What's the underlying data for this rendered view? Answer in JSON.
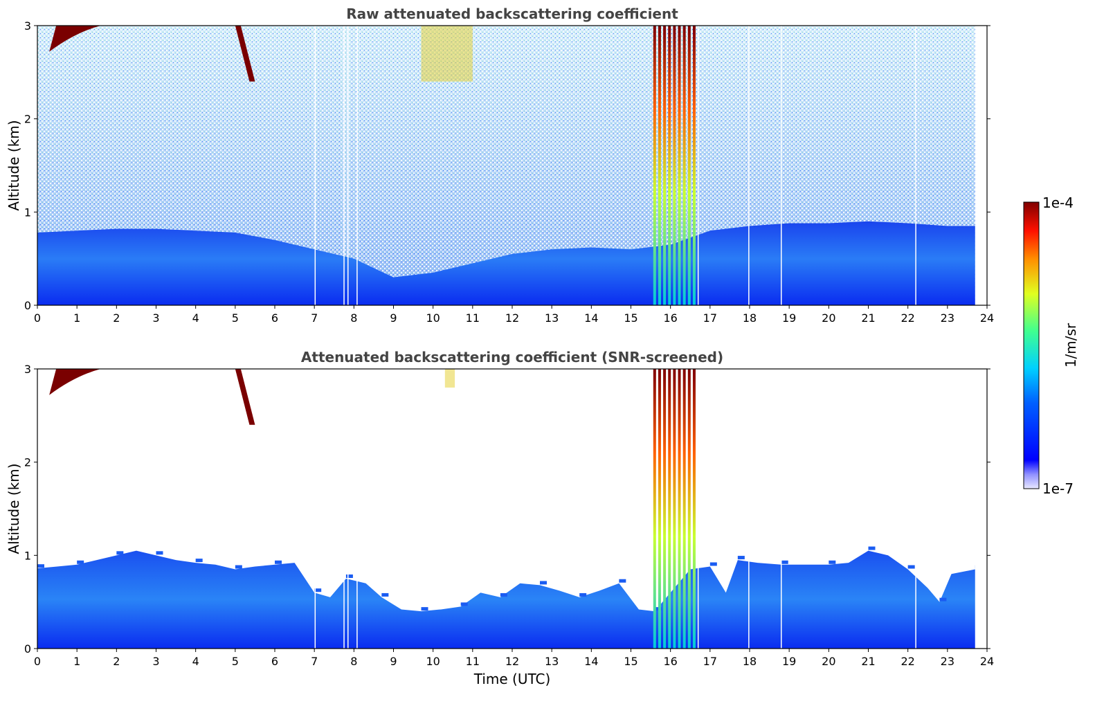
{
  "chart_data": [
    {
      "type": "heatmap",
      "title": "Raw attenuated backscattering coefficient",
      "xlabel": "",
      "ylabel": "Altitude (km)",
      "xlim": [
        0,
        24
      ],
      "ylim": [
        0,
        3
      ],
      "x_ticks": [
        "0",
        "1",
        "2",
        "3",
        "4",
        "5",
        "6",
        "7",
        "8",
        "9",
        "10",
        "11",
        "12",
        "13",
        "14",
        "15",
        "16",
        "17",
        "18",
        "19",
        "20",
        "21",
        "22",
        "23",
        "24"
      ],
      "y_ticks": [
        "0",
        "1",
        "2",
        "3"
      ],
      "data_end_time": 23.7,
      "gap_times": [
        7.02,
        7.75,
        7.85,
        8.08,
        16.7,
        17.98,
        18.8,
        22.2
      ],
      "boundary_layer_top_km": [
        [
          0,
          0.78
        ],
        [
          1,
          0.8
        ],
        [
          2,
          0.82
        ],
        [
          3,
          0.82
        ],
        [
          4,
          0.8
        ],
        [
          5,
          0.78
        ],
        [
          6,
          0.7
        ],
        [
          7,
          0.6
        ],
        [
          8,
          0.5
        ],
        [
          9,
          0.3
        ],
        [
          10,
          0.35
        ],
        [
          11,
          0.45
        ],
        [
          12,
          0.55
        ],
        [
          13,
          0.6
        ],
        [
          14,
          0.62
        ],
        [
          15,
          0.6
        ],
        [
          16,
          0.65
        ],
        [
          17,
          0.8
        ],
        [
          18,
          0.85
        ],
        [
          19,
          0.88
        ],
        [
          20,
          0.88
        ],
        [
          21,
          0.9
        ],
        [
          22,
          0.88
        ],
        [
          23,
          0.85
        ],
        [
          23.7,
          0.85
        ]
      ],
      "clouds": [
        {
          "t_start": 0.3,
          "t_end": 1.6,
          "alt_bottom_km": 2.72,
          "alt_top_km": 3.0
        },
        {
          "t_start": 5.0,
          "t_end": 5.5,
          "alt_bottom_km": 2.4,
          "alt_top_km": 3.0
        },
        {
          "t_start": 15.6,
          "t_end": 16.6,
          "alt_bottom_km": 0.0,
          "alt_top_km": 3.0
        }
      ],
      "aerosol_plume": {
        "t_start": 9.7,
        "t_end": 11.0,
        "alt_bottom_km": 2.4,
        "alt_top_km": 3.0
      }
    },
    {
      "type": "heatmap",
      "title": "Attenuated backscattering coefficient (SNR-screened)",
      "xlabel": "Time (UTC)",
      "ylabel": "Altitude (km)",
      "xlim": [
        0,
        24
      ],
      "ylim": [
        0,
        3
      ],
      "x_ticks": [
        "0",
        "1",
        "2",
        "3",
        "4",
        "5",
        "6",
        "7",
        "8",
        "9",
        "10",
        "11",
        "12",
        "13",
        "14",
        "15",
        "16",
        "17",
        "18",
        "19",
        "20",
        "21",
        "22",
        "23",
        "24"
      ],
      "y_ticks": [
        "0",
        "1",
        "2",
        "3"
      ],
      "data_end_time": 23.7,
      "gap_times": [
        7.02,
        7.75,
        7.85,
        8.08,
        16.7,
        17.98,
        18.8,
        22.2
      ],
      "screened_layer_top_km": [
        [
          0,
          0.86
        ],
        [
          0.5,
          0.88
        ],
        [
          1,
          0.9
        ],
        [
          1.5,
          0.95
        ],
        [
          2,
          1.0
        ],
        [
          2.5,
          1.05
        ],
        [
          3,
          1.0
        ],
        [
          3.5,
          0.95
        ],
        [
          4,
          0.92
        ],
        [
          4.5,
          0.9
        ],
        [
          5,
          0.85
        ],
        [
          5.5,
          0.88
        ],
        [
          6,
          0.9
        ],
        [
          6.5,
          0.92
        ],
        [
          7,
          0.6
        ],
        [
          7.4,
          0.55
        ],
        [
          7.8,
          0.75
        ],
        [
          8.3,
          0.7
        ],
        [
          8.7,
          0.55
        ],
        [
          9.2,
          0.42
        ],
        [
          9.7,
          0.4
        ],
        [
          10.2,
          0.42
        ],
        [
          10.7,
          0.45
        ],
        [
          11.2,
          0.6
        ],
        [
          11.7,
          0.55
        ],
        [
          12.2,
          0.7
        ],
        [
          12.7,
          0.68
        ],
        [
          13.2,
          0.62
        ],
        [
          13.7,
          0.55
        ],
        [
          14.2,
          0.62
        ],
        [
          14.7,
          0.7
        ],
        [
          15.2,
          0.42
        ],
        [
          15.6,
          0.4
        ],
        [
          16.5,
          0.85
        ],
        [
          17.0,
          0.88
        ],
        [
          17.4,
          0.6
        ],
        [
          17.7,
          0.95
        ],
        [
          18.2,
          0.92
        ],
        [
          18.8,
          0.9
        ],
        [
          19.5,
          0.9
        ],
        [
          20,
          0.9
        ],
        [
          20.5,
          0.92
        ],
        [
          21,
          1.05
        ],
        [
          21.5,
          1.0
        ],
        [
          22,
          0.85
        ],
        [
          22.5,
          0.65
        ],
        [
          22.8,
          0.5
        ],
        [
          23.1,
          0.8
        ],
        [
          23.7,
          0.85
        ]
      ],
      "clouds": [
        {
          "t_start": 0.3,
          "t_end": 1.6,
          "alt_bottom_km": 2.72,
          "alt_top_km": 3.0
        },
        {
          "t_start": 5.0,
          "t_end": 5.5,
          "alt_bottom_km": 2.4,
          "alt_top_km": 3.0
        },
        {
          "t_start": 15.6,
          "t_end": 16.6,
          "alt_bottom_km": 0.0,
          "alt_top_km": 3.0
        }
      ],
      "aerosol_plume": {
        "t_start": 10.3,
        "t_end": 10.55,
        "alt_bottom_km": 2.8,
        "alt_top_km": 3.0
      }
    }
  ],
  "colorbar": {
    "max_label": "1e-4",
    "min_label": "1e-7",
    "unit_label": "1/m/sr",
    "colormap": "jet",
    "scale": "log"
  },
  "colors": {
    "title": "#444444",
    "boundary_layer": "#1a4cf0",
    "cloud": "#7a0000",
    "plume": "#e6d23a"
  }
}
